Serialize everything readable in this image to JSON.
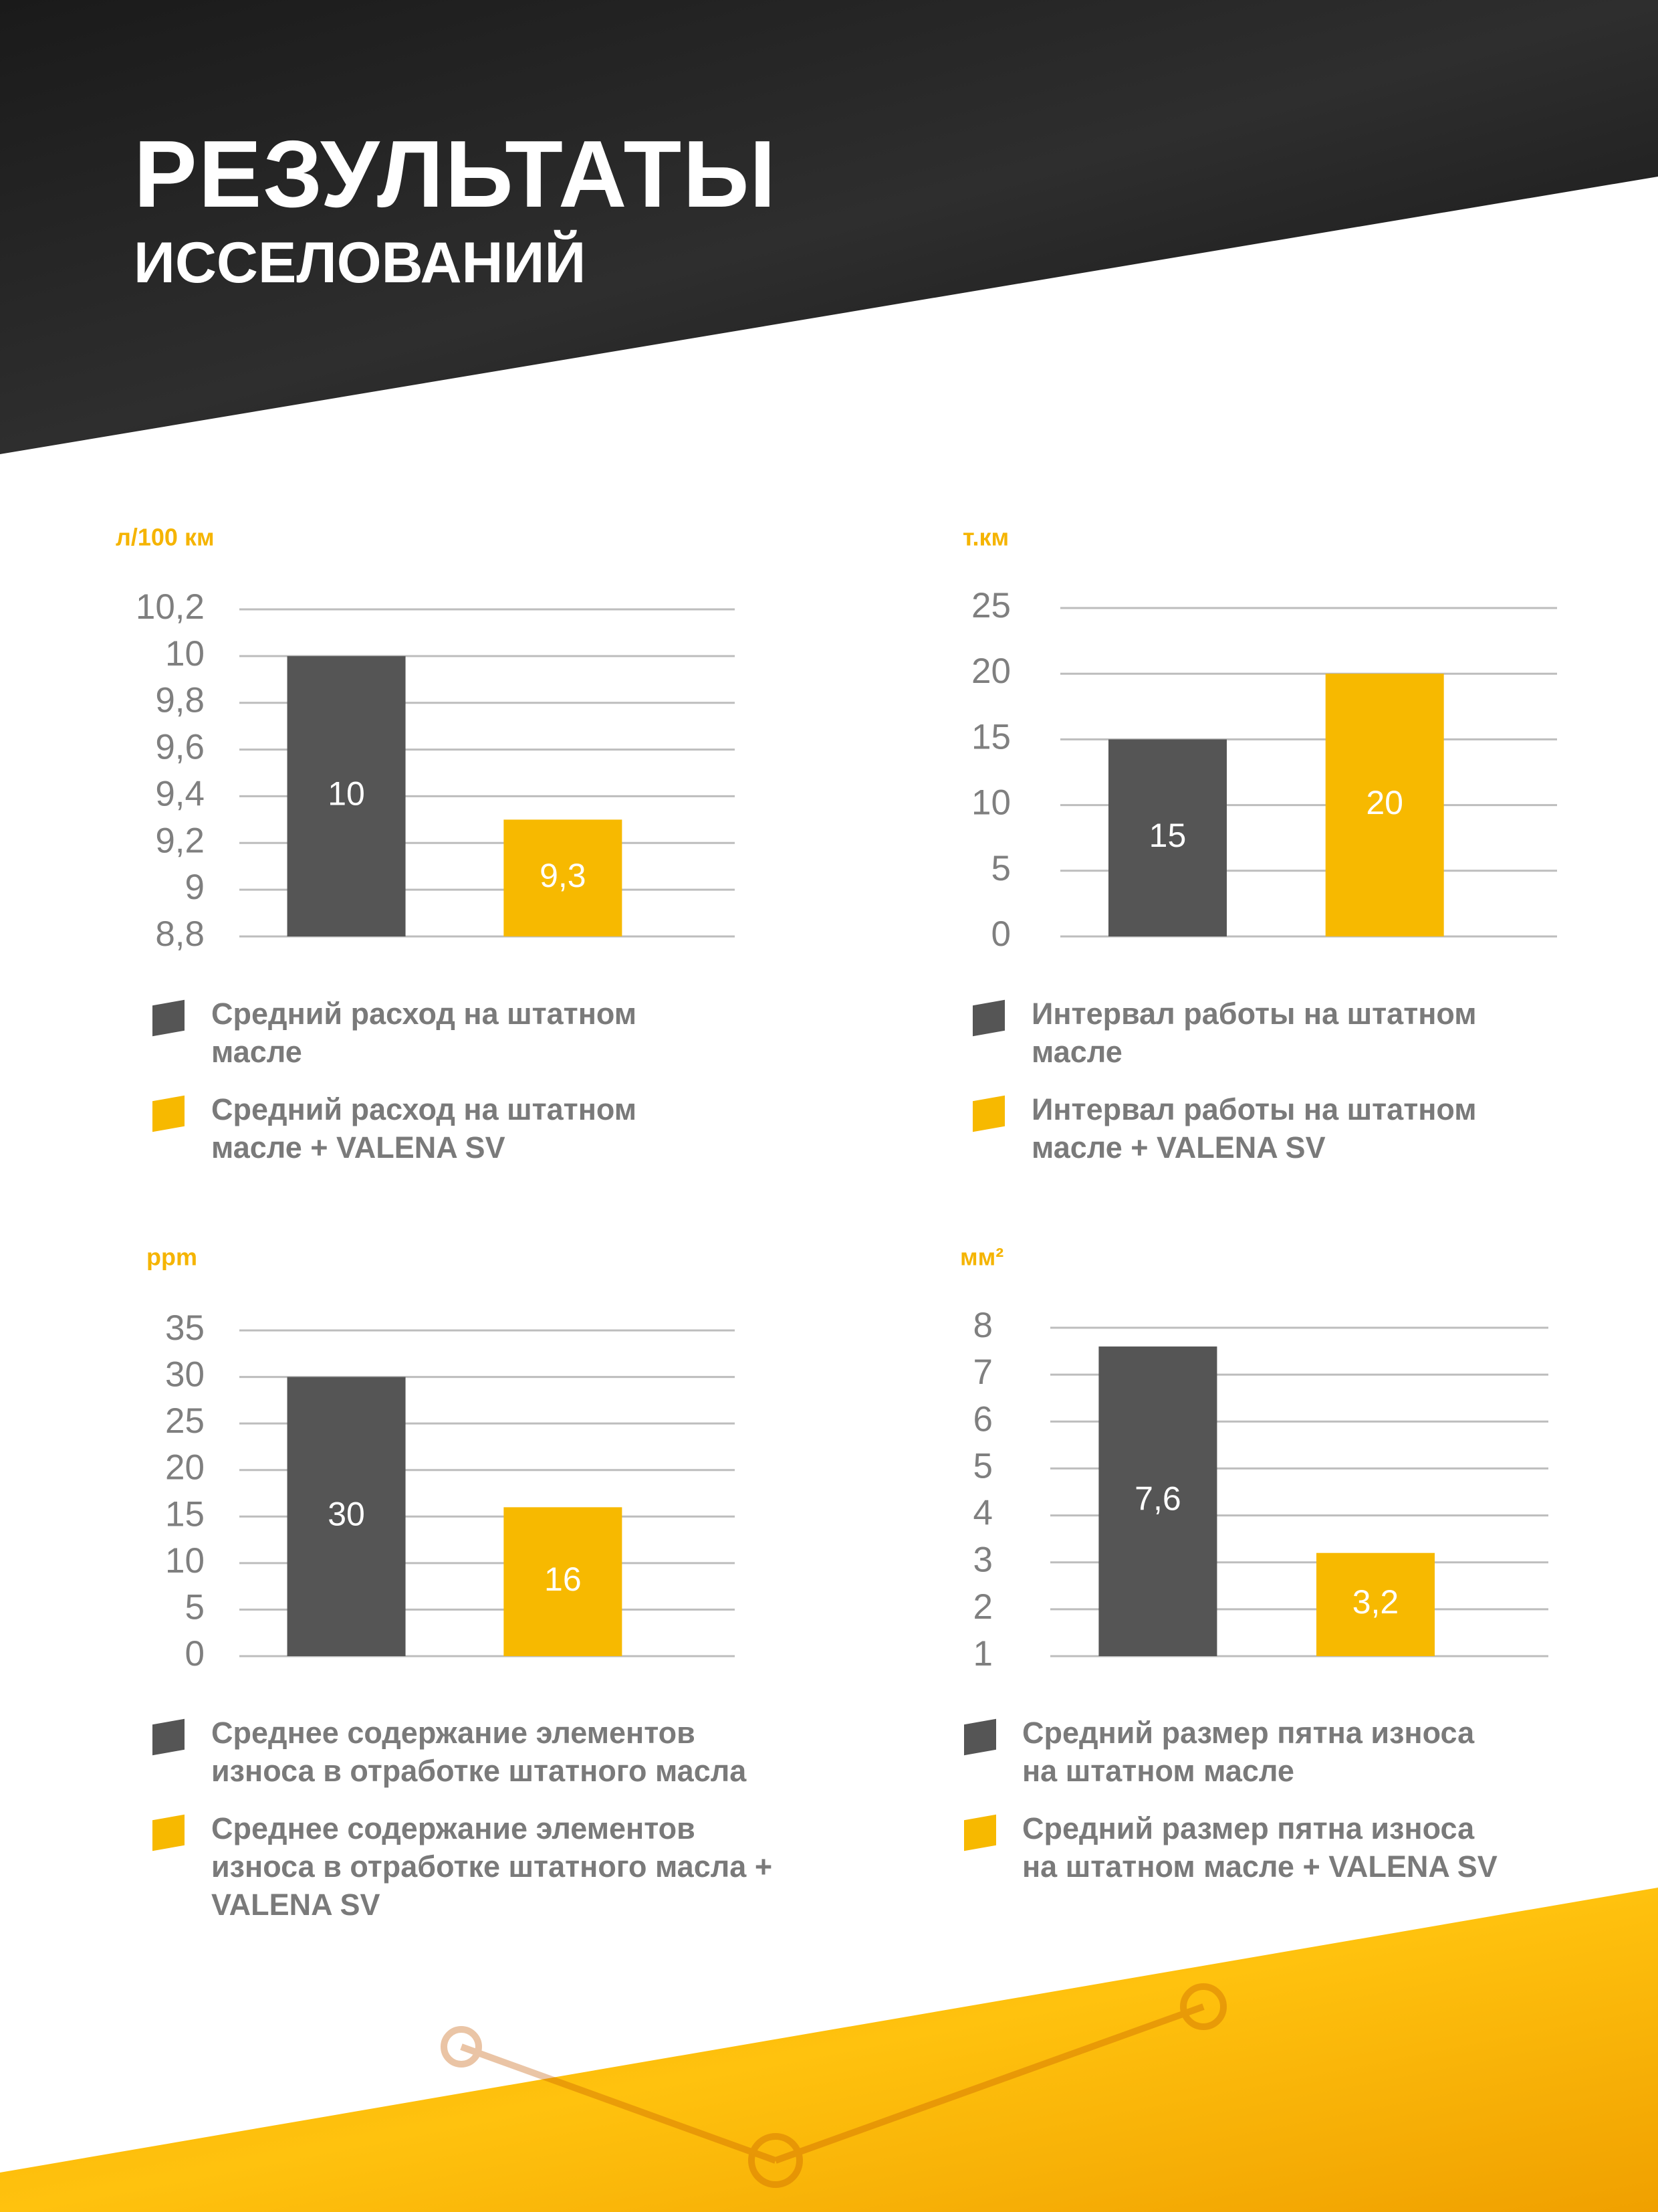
{
  "header": {
    "title": "РЕЗУЛЬТАТЫ",
    "subtitle": "ИССЕЛОВАНИЙ"
  },
  "chart_data": [
    {
      "type": "bar",
      "unit": "л/100 км",
      "ylim": [
        8.8,
        10.2
      ],
      "yticks": [
        {
          "value": 8.8,
          "label": "8,8"
        },
        9,
        {
          "value": 9.2,
          "label": "9,2"
        },
        {
          "value": 9.4,
          "label": "9,4"
        },
        {
          "value": 9.6,
          "label": "9,6"
        },
        {
          "value": 9.8,
          "label": "9,8"
        },
        10,
        {
          "value": 10.2,
          "label": "10,2"
        }
      ],
      "grid": true,
      "series": [
        {
          "name": "Средний расход на штатном масле",
          "color": "#555555",
          "values": [
            10
          ]
        },
        {
          "name": "Средний расход на штатном масле + VALENA SV",
          "color": "#f7b900",
          "values": [
            9.3
          ],
          "value_labels": [
            "9,3"
          ]
        }
      ]
    },
    {
      "type": "bar",
      "unit": "т.км",
      "ylim": [
        0,
        25
      ],
      "yticks": [
        0,
        5,
        10,
        15,
        20,
        25
      ],
      "grid": true,
      "series": [
        {
          "name": "Интервал работы на штатном масле",
          "color": "#555555",
          "values": [
            15
          ]
        },
        {
          "name": "Интервал работы на штатном масле + VALENA SV",
          "color": "#f7b900",
          "values": [
            20
          ]
        }
      ]
    },
    {
      "type": "bar",
      "unit": "ppm",
      "ylim": [
        0,
        35
      ],
      "yticks": [
        0,
        5,
        10,
        15,
        20,
        25,
        30,
        35
      ],
      "grid": true,
      "series": [
        {
          "name": "Среднее содержание элементов износа в отработке штатного масла",
          "color": "#555555",
          "values": [
            30
          ]
        },
        {
          "name": "Среднее содержание элементов износа в отработке штатного масла + VALENA SV",
          "color": "#f7b900",
          "values": [
            16
          ]
        }
      ]
    },
    {
      "type": "bar",
      "unit": "мм²",
      "ylim": [
        1,
        8
      ],
      "yticks": [
        1,
        2,
        3,
        4,
        5,
        6,
        7,
        8
      ],
      "grid": true,
      "series": [
        {
          "name": "Средний размер пятна износа на штатном масле",
          "color": "#555555",
          "values": [
            7.6
          ],
          "value_labels": [
            "7,6"
          ]
        },
        {
          "name": "Средний размер пятна износа на штатном масле + VALENA SV",
          "color": "#f7b900",
          "values": [
            3.2
          ],
          "value_labels": [
            "3,2"
          ]
        }
      ]
    }
  ]
}
